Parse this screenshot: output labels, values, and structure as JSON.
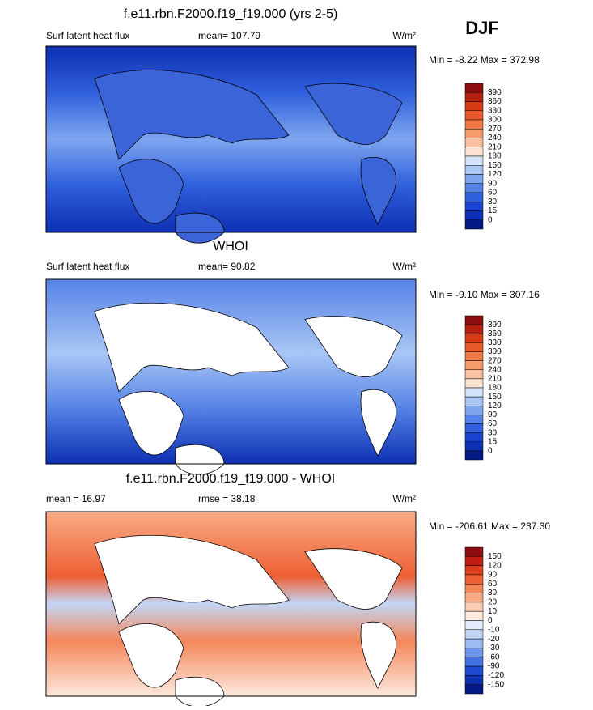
{
  "season": "DJF",
  "panels": [
    {
      "title": "f.e11.rbn.F2000.f19_f19.000 (yrs 2-5)",
      "left_label": "Surf latent heat flux",
      "stat": "mean= 107.79",
      "units": "W/m²",
      "minmax": "Min = -8.22 Max = 372.98",
      "colorbar": {
        "labels": [
          "390",
          "360",
          "330",
          "300",
          "270",
          "240",
          "210",
          "180",
          "150",
          "120",
          "90",
          "60",
          "30",
          "15",
          "0"
        ],
        "colors": [
          "#8c0d0d",
          "#b3200f",
          "#d63a14",
          "#e8572a",
          "#f07a45",
          "#f59c6c",
          "#f9c1a0",
          "#fde3d2",
          "#d6e4fb",
          "#a9c6f5",
          "#7ea6ef",
          "#5582e6",
          "#2f5fdc",
          "#1a44cf",
          "#0d2fb3",
          "#061a86"
        ]
      }
    },
    {
      "title": "WHOI",
      "left_label": "Surf latent heat flux",
      "stat": "mean=  90.82",
      "units": "W/m²",
      "minmax": "Min = -9.10 Max = 307.16",
      "colorbar": {
        "labels": [
          "390",
          "360",
          "330",
          "300",
          "270",
          "240",
          "210",
          "180",
          "150",
          "120",
          "90",
          "60",
          "30",
          "15",
          "0"
        ],
        "colors": [
          "#8c0d0d",
          "#b3200f",
          "#d63a14",
          "#e8572a",
          "#f07a45",
          "#f59c6c",
          "#f9c1a0",
          "#fde3d2",
          "#d6e4fb",
          "#a9c6f5",
          "#7ea6ef",
          "#5582e6",
          "#2f5fdc",
          "#1a44cf",
          "#0d2fb3",
          "#061a86"
        ]
      }
    },
    {
      "title": "f.e11.rbn.F2000.f19_f19.000 - WHOI",
      "left_label": "mean =  16.97",
      "stat": "rmse =  38.18",
      "units": "W/m²",
      "minmax": "Min = -206.61 Max = 237.30",
      "colorbar": {
        "labels": [
          "150",
          "120",
          "90",
          "60",
          "30",
          "20",
          "10",
          "0",
          "-10",
          "-20",
          "-30",
          "-60",
          "-90",
          "-120",
          "-150"
        ],
        "colors": [
          "#8c0d0d",
          "#c21d12",
          "#e03c1c",
          "#ee5f33",
          "#f4875a",
          "#f8ab85",
          "#fbcdb5",
          "#fde9de",
          "#e3ecfb",
          "#c3d6f6",
          "#9dbaf1",
          "#6f95ea",
          "#4470e0",
          "#1f4bd2",
          "#0d2fb3",
          "#061a86"
        ]
      }
    }
  ]
}
